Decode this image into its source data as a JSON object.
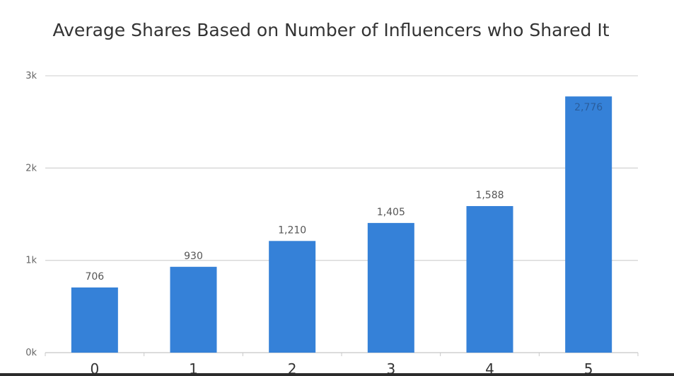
{
  "chart_data": {
    "type": "bar",
    "title": "Average Shares Based on Number of Influencers who Shared It",
    "xlabel": "",
    "ylabel": "",
    "categories": [
      "0",
      "1",
      "2",
      "3",
      "4",
      "5"
    ],
    "values": [
      706,
      930,
      1210,
      1405,
      1588,
      2776
    ],
    "data_labels": [
      "706",
      "930",
      "1,210",
      "1,405",
      "1,588",
      "2,776"
    ],
    "ylim": [
      0,
      3000
    ],
    "y_ticks": [
      0,
      1000,
      2000,
      3000
    ],
    "y_tick_labels": [
      "0k",
      "1k",
      "2k",
      "3k"
    ],
    "grid": true,
    "legend": "none",
    "bar_color": "#3581d8"
  }
}
